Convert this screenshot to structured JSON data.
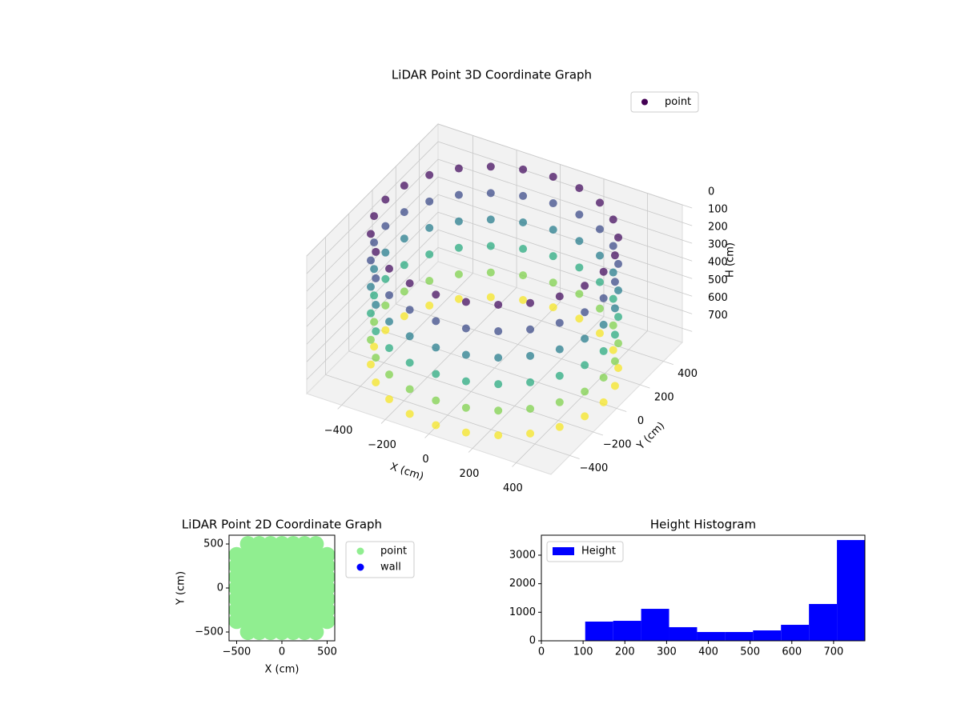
{
  "chart_data": [
    {
      "type": "scatter3d",
      "title": "LiDAR Point 3D Coordinate Graph",
      "xlabel": "X (cm)",
      "ylabel": "Y (cm)",
      "zlabel": "H (cm)",
      "xlim": [
        -560,
        560
      ],
      "ylim": [
        -560,
        560
      ],
      "zlim": [
        0,
        780
      ],
      "z_inverted": true,
      "xticks": [
        {
          "value": -400,
          "label": "−400"
        },
        {
          "value": -200,
          "label": "−200"
        },
        0,
        200,
        400
      ],
      "yticks": [
        {
          "value": -400,
          "label": "−400"
        },
        {
          "value": -200,
          "label": "−200"
        },
        0,
        200,
        400
      ],
      "zticks": [
        0,
        100,
        200,
        300,
        400,
        500,
        600,
        700
      ],
      "colormap": "viridis",
      "legend": "upper right",
      "grid": true,
      "series": [
        {
          "name": "point",
          "color": "#440154",
          "x": [
            500,
            483,
            433,
            354,
            250,
            129,
            0,
            -129,
            -250,
            -354,
            -433,
            -483,
            -500,
            -483,
            -433,
            -354,
            -250,
            -129,
            0,
            129,
            250,
            354,
            433,
            483,
            500,
            483,
            433,
            354,
            250,
            129,
            0,
            -129,
            -250,
            -354,
            -433,
            -483,
            -500,
            -483,
            -433,
            -354,
            -250,
            -129,
            0,
            129,
            250,
            354,
            433,
            483,
            500,
            483,
            433,
            354,
            250,
            129,
            0,
            -129,
            -250,
            -354,
            -433,
            -483,
            -500,
            -483,
            -433,
            -354,
            -250,
            -129,
            0,
            129,
            250,
            354,
            433,
            483,
            500,
            483,
            433,
            354,
            250,
            129,
            0,
            -129,
            -250,
            -354,
            -433,
            -483,
            -500,
            -483,
            -433,
            -354,
            -250,
            -129,
            0,
            129,
            250,
            354,
            433,
            483,
            500,
            483,
            433,
            354,
            250,
            129,
            0,
            -129,
            -250,
            -354,
            -433,
            -483,
            -500,
            -483,
            -433,
            -354,
            -250,
            -129,
            0,
            129,
            250,
            354,
            433,
            483,
            500,
            483,
            433,
            354,
            250,
            129,
            0,
            -129,
            -250,
            -354,
            -433,
            -483,
            -500,
            -483,
            -433,
            -354,
            -250,
            -129,
            0,
            129,
            250,
            354,
            433,
            483
          ],
          "y": [
            0,
            129,
            250,
            354,
            433,
            483,
            500,
            483,
            433,
            354,
            250,
            129,
            0,
            -129,
            -250,
            -354,
            -433,
            -483,
            -500,
            -483,
            -433,
            -354,
            -250,
            -129,
            0,
            129,
            250,
            354,
            433,
            483,
            500,
            483,
            433,
            354,
            250,
            129,
            0,
            -129,
            -250,
            -354,
            -433,
            -483,
            -500,
            -483,
            -433,
            -354,
            -250,
            -129,
            0,
            129,
            250,
            354,
            433,
            483,
            500,
            483,
            433,
            354,
            250,
            129,
            0,
            -129,
            -250,
            -354,
            -433,
            -483,
            -500,
            -483,
            -433,
            -354,
            -250,
            -129,
            0,
            129,
            250,
            354,
            433,
            483,
            500,
            483,
            433,
            354,
            250,
            129,
            0,
            -129,
            -250,
            -354,
            -433,
            -483,
            -500,
            -483,
            -433,
            -354,
            -250,
            -129,
            0,
            129,
            250,
            354,
            433,
            483,
            500,
            483,
            433,
            354,
            250,
            129,
            0,
            -129,
            -250,
            -354,
            -433,
            -483,
            -500,
            -483,
            -433,
            -354,
            -250,
            -129,
            0,
            129,
            250,
            354,
            433,
            483,
            500,
            483,
            433,
            354,
            250,
            129,
            0,
            -129,
            -250,
            -354,
            -433,
            -483,
            -500,
            -483,
            -433,
            -354,
            -250,
            -129
          ],
          "z": [
            770,
            770,
            770,
            770,
            770,
            770,
            770,
            770,
            770,
            770,
            770,
            770,
            770,
            770,
            770,
            770,
            770,
            770,
            770,
            770,
            770,
            770,
            770,
            770,
            630,
            630,
            630,
            630,
            630,
            630,
            630,
            630,
            630,
            630,
            630,
            630,
            630,
            630,
            630,
            630,
            630,
            630,
            630,
            630,
            630,
            630,
            630,
            630,
            480,
            480,
            480,
            480,
            480,
            480,
            480,
            480,
            480,
            480,
            480,
            480,
            480,
            480,
            480,
            480,
            480,
            480,
            480,
            480,
            480,
            480,
            480,
            480,
            330,
            330,
            330,
            330,
            330,
            330,
            330,
            330,
            330,
            330,
            330,
            330,
            330,
            330,
            330,
            330,
            330,
            330,
            330,
            330,
            330,
            330,
            330,
            330,
            180,
            180,
            180,
            180,
            180,
            180,
            180,
            180,
            180,
            180,
            180,
            180,
            180,
            180,
            180,
            180,
            180,
            180,
            180,
            180,
            180,
            180,
            180,
            180,
            30,
            30,
            30,
            30,
            30,
            30,
            30,
            30,
            30,
            30,
            30,
            30,
            30,
            30,
            30,
            30,
            30,
            30,
            30,
            30,
            30,
            30,
            30,
            30
          ]
        }
      ]
    },
    {
      "type": "scatter",
      "title": "LiDAR Point 2D Coordinate Graph",
      "xlabel": "X (cm)",
      "ylabel": "Y (cm)",
      "xlim": [
        -584,
        584
      ],
      "ylim": [
        -600,
        600
      ],
      "xticks": [
        {
          "value": -500,
          "label": "−500"
        },
        0,
        500
      ],
      "yticks": [
        {
          "value": -500,
          "label": "−500"
        },
        0,
        500
      ],
      "legend": "outside right",
      "series": [
        {
          "name": "point",
          "color": "#90ee90",
          "x": [
            -375,
            -250,
            -125,
            0,
            125,
            250,
            375,
            -500,
            -375,
            -250,
            -125,
            0,
            125,
            250,
            375,
            500,
            -500,
            -375,
            -250,
            -125,
            0,
            125,
            250,
            375,
            500,
            -500,
            -375,
            -250,
            -125,
            0,
            125,
            250,
            375,
            500,
            -500,
            -375,
            -250,
            -125,
            0,
            125,
            250,
            375,
            500,
            -500,
            -375,
            -250,
            -125,
            0,
            125,
            250,
            375,
            500,
            -500,
            -375,
            -250,
            -125,
            0,
            125,
            250,
            375,
            500,
            -500,
            -375,
            -250,
            -125,
            0,
            125,
            250,
            375,
            500,
            -375,
            -250,
            -125,
            0,
            125,
            250,
            375
          ],
          "y": [
            -500,
            -500,
            -500,
            -500,
            -500,
            -500,
            -500,
            -375,
            -375,
            -375,
            -375,
            -375,
            -375,
            -375,
            -375,
            -375,
            -250,
            -250,
            -250,
            -250,
            -250,
            -250,
            -250,
            -250,
            -250,
            -125,
            -125,
            -125,
            -125,
            -125,
            -125,
            -125,
            -125,
            -125,
            0,
            0,
            0,
            0,
            0,
            0,
            0,
            0,
            0,
            125,
            125,
            125,
            125,
            125,
            125,
            125,
            125,
            125,
            250,
            250,
            250,
            250,
            250,
            250,
            250,
            250,
            250,
            375,
            375,
            375,
            375,
            375,
            375,
            375,
            375,
            375,
            500,
            500,
            500,
            500,
            500,
            500,
            500
          ]
        },
        {
          "name": "wall",
          "color": "#0000ff",
          "x": [],
          "y": []
        }
      ]
    },
    {
      "type": "histogram",
      "title": "Height Histogram",
      "xlim": [
        0,
        775
      ],
      "ylim": [
        0,
        3700
      ],
      "xticks": [
        0,
        100,
        200,
        300,
        400,
        500,
        600,
        700
      ],
      "yticks": [
        0,
        1000,
        2000,
        3000
      ],
      "legend": "upper left",
      "series": [
        {
          "name": "Height",
          "color": "#0000ff",
          "bins": [
            105,
            172,
            239,
            306,
            373,
            440,
            507,
            574,
            641,
            708,
            775
          ],
          "values": [
            673,
            700,
            1120,
            477,
            308,
            308,
            364,
            560,
            1290,
            3530
          ]
        }
      ]
    }
  ]
}
